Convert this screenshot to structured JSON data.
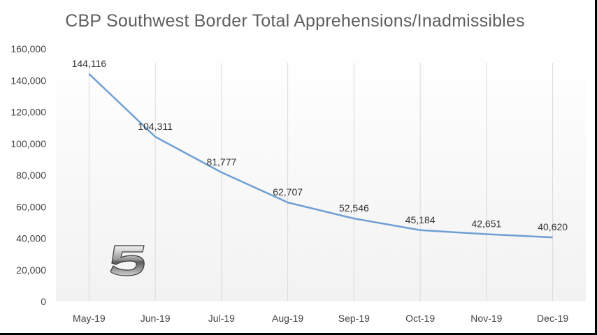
{
  "chart_data": {
    "type": "line",
    "title": "CBP Southwest Border Total Apprehensions/Inadmissibles",
    "categories": [
      "May-19",
      "Jun-19",
      "Jul-19",
      "Aug-19",
      "Sep-19",
      "Oct-19",
      "Nov-19",
      "Dec-19"
    ],
    "values": [
      144116,
      104311,
      81777,
      62707,
      52546,
      45184,
      42651,
      40620
    ],
    "data_labels": [
      "144,116",
      "104,311",
      "81,777",
      "62,707",
      "52,546",
      "45,184",
      "42,651",
      "40,620"
    ],
    "yticks": [
      0,
      20000,
      40000,
      60000,
      80000,
      100000,
      120000,
      140000,
      160000
    ],
    "ytick_labels": [
      "0",
      "20,000",
      "40,000",
      "60,000",
      "80,000",
      "100,000",
      "120,000",
      "140,000",
      "160,000"
    ],
    "ylim": [
      0,
      160000
    ],
    "xlabel": "",
    "ylabel": "",
    "grid": "vertical",
    "legend": "none",
    "line_color": "#6f9fd3",
    "grid_color": "#d9d9d9"
  },
  "overlay": {
    "logo_text": "5",
    "logo_name": "channel-5-logo"
  }
}
